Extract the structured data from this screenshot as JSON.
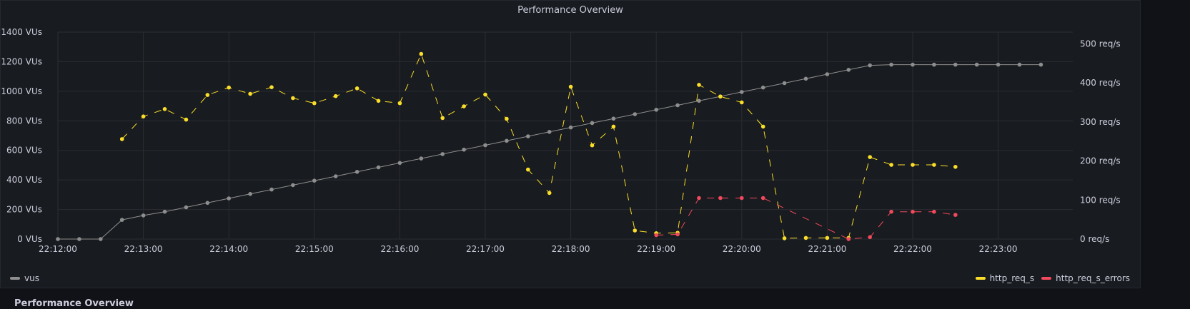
{
  "panel": {
    "title": "Performance Overview"
  },
  "next_panel": {
    "title": "Performance Overview"
  },
  "colors": {
    "vus": "#8e8e8e",
    "http_req_s": "#fade2a",
    "http_req_s_errors": "#f2495c",
    "grid": "#2a2d33"
  },
  "legend": {
    "left": [
      {
        "name": "vus",
        "color": "#8e8e8e"
      }
    ],
    "right": [
      {
        "name": "http_req_s",
        "color": "#fade2a"
      },
      {
        "name": "http_req_s_errors",
        "color": "#f2495c"
      }
    ]
  },
  "chart_data": {
    "type": "line",
    "title": "Performance Overview",
    "x_ticks": [
      "22:12:00",
      "22:13:00",
      "22:14:00",
      "22:15:00",
      "22:16:00",
      "22:17:00",
      "22:18:00",
      "22:19:00",
      "22:20:00",
      "22:21:00",
      "22:22:00",
      "22:23:00"
    ],
    "x_range": [
      "22:12:00",
      "22:23:40"
    ],
    "y_left": {
      "unit": "VUs",
      "ylim": [
        0,
        1400
      ],
      "ticks": [
        "0 VUs",
        "200 VUs",
        "400 VUs",
        "600 VUs",
        "800 VUs",
        "1000 VUs",
        "1200 VUs",
        "1400 VUs"
      ]
    },
    "y_right": {
      "unit": "req/s",
      "ylim": [
        0,
        530
      ],
      "ticks": [
        "0 req/s",
        "100 req/s",
        "200 req/s",
        "300 req/s",
        "400 req/s",
        "500 req/s"
      ]
    },
    "grid": true,
    "legend_position": "bottom",
    "series": [
      {
        "name": "vus",
        "axis": "left",
        "style": "solid",
        "x": [
          "22:12:00",
          "22:12:15",
          "22:12:30",
          "22:12:45",
          "22:13:00",
          "22:13:15",
          "22:13:30",
          "22:13:45",
          "22:14:00",
          "22:14:15",
          "22:14:30",
          "22:14:45",
          "22:15:00",
          "22:15:15",
          "22:15:30",
          "22:15:45",
          "22:16:00",
          "22:16:15",
          "22:16:30",
          "22:16:45",
          "22:17:00",
          "22:17:15",
          "22:17:30",
          "22:17:45",
          "22:18:00",
          "22:18:15",
          "22:18:30",
          "22:18:45",
          "22:19:00",
          "22:19:15",
          "22:19:30",
          "22:19:45",
          "22:20:00",
          "22:20:15",
          "22:20:30",
          "22:20:45",
          "22:21:00",
          "22:21:15",
          "22:21:30",
          "22:21:45",
          "22:22:00",
          "22:22:15",
          "22:22:30",
          "22:22:45",
          "22:23:00",
          "22:23:15",
          "22:23:30"
        ],
        "values": [
          0,
          0,
          0,
          130,
          160,
          185,
          215,
          245,
          275,
          305,
          335,
          365,
          395,
          425,
          455,
          485,
          515,
          545,
          575,
          605,
          635,
          665,
          695,
          725,
          755,
          785,
          815,
          845,
          875,
          905,
          935,
          965,
          995,
          1025,
          1055,
          1085,
          1115,
          1145,
          1175,
          1180,
          1180,
          1180,
          1180,
          1180,
          1180,
          1180,
          1180
        ]
      },
      {
        "name": "http_req_s",
        "axis": "right",
        "style": "dashed",
        "x": [
          "22:12:45",
          "22:13:00",
          "22:13:15",
          "22:13:30",
          "22:13:45",
          "22:14:00",
          "22:14:15",
          "22:14:30",
          "22:14:45",
          "22:15:00",
          "22:15:15",
          "22:15:30",
          "22:15:45",
          "22:16:00",
          "22:16:15",
          "22:16:30",
          "22:16:45",
          "22:17:00",
          "22:17:15",
          "22:17:30",
          "22:17:45",
          "22:18:00",
          "22:18:15",
          "22:18:30",
          "22:18:45",
          "22:19:00",
          "22:19:15",
          "22:19:30",
          "22:19:45",
          "22:20:00",
          "22:20:15",
          "22:20:30",
          "22:20:45",
          "22:21:00",
          "22:21:15",
          "22:21:30",
          "22:21:45",
          "22:22:00",
          "22:22:15",
          "22:22:30"
        ],
        "values": [
          256,
          314,
          333,
          306,
          369,
          388,
          372,
          389,
          361,
          348,
          366,
          386,
          354,
          348,
          474,
          310,
          340,
          370,
          308,
          178,
          118,
          390,
          240,
          288,
          22,
          15,
          16,
          395,
          365,
          350,
          288,
          2,
          3,
          3,
          3,
          210,
          190,
          190,
          190,
          185
        ]
      },
      {
        "name": "http_req_s_errors",
        "axis": "right",
        "style": "dashed",
        "x": [
          "22:19:00",
          "22:19:15",
          "22:19:30",
          "22:19:45",
          "22:20:00",
          "22:20:15",
          "22:21:15",
          "22:21:30",
          "22:21:45",
          "22:22:00",
          "22:22:15",
          "22:22:30"
        ],
        "values": [
          10,
          12,
          105,
          105,
          105,
          105,
          0,
          5,
          70,
          70,
          70,
          62
        ]
      }
    ]
  }
}
